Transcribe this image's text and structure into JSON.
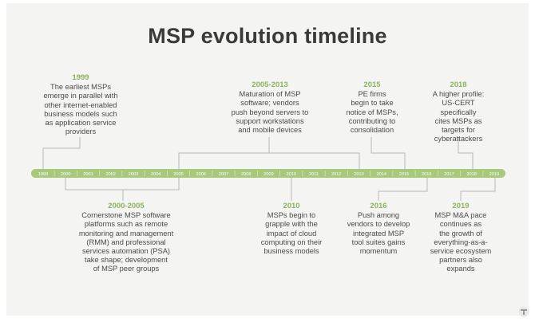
{
  "title": "MSP evolution timeline",
  "years": [
    "1999",
    "2000",
    "2001",
    "2002",
    "2003",
    "2004",
    "2005",
    "2006",
    "2007",
    "2008",
    "2009",
    "2010",
    "2011",
    "2012",
    "2013",
    "2014",
    "2015",
    "2016",
    "2017",
    "2018",
    "2019"
  ],
  "colors": {
    "bar": "#a7c97a",
    "tick_text": "#ffffff",
    "connector": "#b9b9b9",
    "accent": "#8bb35a",
    "body_text": "#4a4a4a",
    "title": "#3a3a3a"
  },
  "events": {
    "e1999": {
      "year": "1999",
      "lines": [
        "The earliest MSPs",
        "emerge in parallel with",
        "other internet-enabled",
        "business models such",
        "as application service",
        "providers"
      ]
    },
    "e2005": {
      "year": "2005-2013",
      "lines": [
        "Maturation of MSP",
        "software; vendors",
        "push beyond servers to",
        "support workstations",
        "and mobile devices"
      ]
    },
    "e2015": {
      "year": "2015",
      "lines": [
        "PE firms",
        "begin to take",
        "notice of MSPs,",
        "contributing to",
        "consolidation"
      ]
    },
    "e2018": {
      "year": "2018",
      "lines": [
        "A higher profile:",
        "US-CERT specifically",
        "cites MSPs as",
        "targets for",
        "cyberattackers"
      ]
    },
    "e2000": {
      "year": "2000-2005",
      "lines": [
        "Cornerstone MSP software",
        "platforms such as remote",
        "monitoring and management",
        "(RMM) and professional",
        "services automation (PSA)",
        "take shape; development",
        "of MSP peer groups"
      ]
    },
    "e2010": {
      "year": "2010",
      "lines": [
        "MSPs begin to",
        "grapple with the",
        "impact of cloud",
        "computing on their",
        "business models"
      ]
    },
    "e2016": {
      "year": "2016",
      "lines": [
        "Push among",
        "vendors to develop",
        "integrated MSP",
        "tool suites gains",
        "momentum"
      ]
    },
    "e2019": {
      "year": "2019",
      "lines": [
        "MSP M&A pace",
        "continues as",
        "the growth of",
        "everything-as-a-",
        "service ecosystem",
        "partners also",
        "expands"
      ]
    }
  },
  "logo_icon": "techtarget-logo-icon"
}
